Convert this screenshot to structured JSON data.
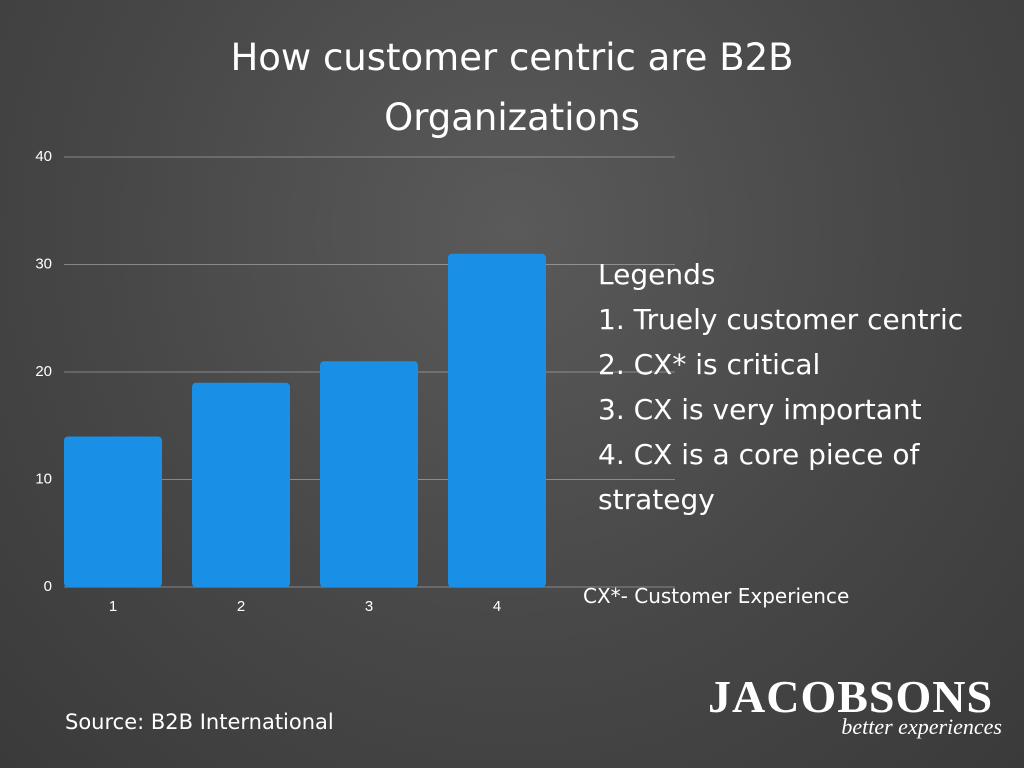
{
  "chart_data": {
    "type": "bar",
    "title": "How customer centric are B2B Organizations",
    "categories": [
      "1",
      "2",
      "3",
      "4"
    ],
    "values": [
      14,
      19,
      21,
      31
    ],
    "color": "#1a8fe6",
    "ylim": [
      0,
      40
    ],
    "yticks": [
      0,
      10,
      20,
      30,
      40
    ],
    "grid": true,
    "legend_title": "Legends",
    "legend_items": [
      "1. Truely customer centric",
      "2. CX* is critical",
      "3. CX is very important",
      "4. CX is a core piece of strategy"
    ],
    "footnote": "CX*- Customer Experience",
    "source": "Source: B2B International"
  },
  "logo": {
    "name": "JACOBSONS",
    "tagline": "better experiences"
  }
}
